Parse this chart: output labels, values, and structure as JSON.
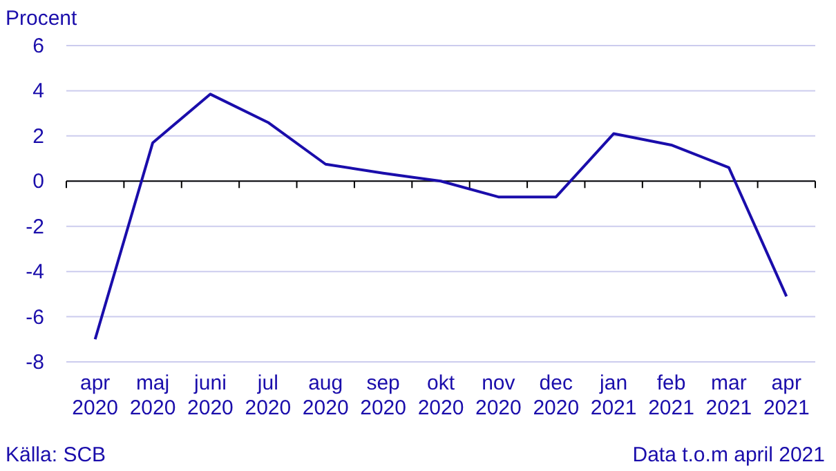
{
  "chart_data": {
    "type": "line",
    "ylabel": "Procent",
    "categories": [
      "apr\n2020",
      "maj\n2020",
      "juni\n2020",
      "jul\n2020",
      "aug\n2020",
      "sep\n2020",
      "okt\n2020",
      "nov\n2020",
      "dec\n2020",
      "jan\n2021",
      "feb\n2021",
      "mar\n2021",
      "apr\n2021"
    ],
    "series": [
      {
        "color": "#1a0dab",
        "values": [
          -7,
          1.7,
          3.85,
          2.6,
          0.75,
          0.35,
          0,
          -0.7,
          -0.7,
          2.1,
          1.6,
          0.6,
          -5.1
        ]
      }
    ],
    "ylim": [
      -8,
      6
    ],
    "yticks": [
      -8,
      -6,
      -4,
      -2,
      0,
      2,
      4,
      6
    ],
    "grid": "y",
    "annotations": [
      "Källa: SCB",
      "Data t.o.m april 2021"
    ]
  }
}
